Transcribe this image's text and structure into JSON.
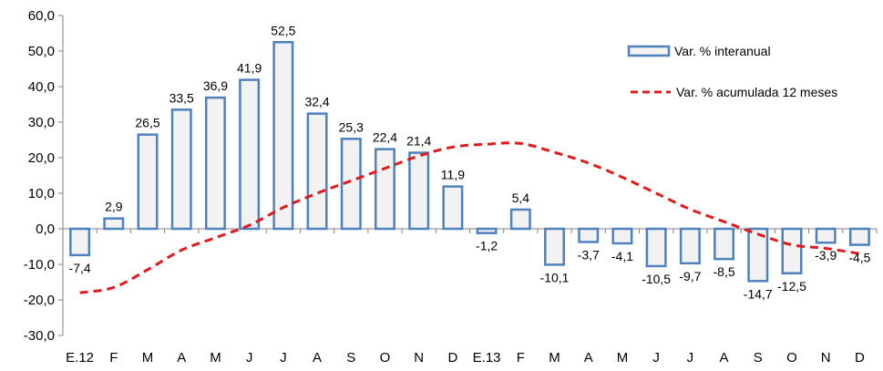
{
  "chart_data": {
    "type": "bar",
    "categories": [
      "E.12",
      "F",
      "M",
      "A",
      "M",
      "J",
      "J",
      "A",
      "S",
      "O",
      "N",
      "D",
      "E.13",
      "F",
      "M",
      "A",
      "M",
      "J",
      "J",
      "A",
      "S",
      "O",
      "N",
      "D"
    ],
    "ylim": [
      -30,
      60
    ],
    "yticks": [
      -30,
      -20,
      -10,
      0,
      10,
      20,
      30,
      40,
      50,
      60
    ],
    "ytick_labels": [
      "-30,0",
      "-20,0",
      "-10,0",
      "0,0",
      "10,0",
      "20,0",
      "30,0",
      "40,0",
      "50,0",
      "60,0"
    ],
    "grid": false,
    "legend_position": "top-right",
    "series": [
      {
        "name": "Var. % interanual",
        "type": "bar",
        "color": "#4f81bd",
        "fill": "#f2f2f2",
        "values": [
          -7.4,
          2.9,
          26.5,
          33.5,
          36.9,
          41.9,
          52.5,
          32.4,
          25.3,
          22.4,
          21.4,
          11.9,
          -1.2,
          5.4,
          -10.1,
          -3.7,
          -4.1,
          -10.5,
          -9.7,
          -8.5,
          -14.7,
          -12.5,
          -3.9,
          -4.5
        ],
        "labels": [
          "-7,4",
          "2,9",
          "26,5",
          "33,5",
          "36,9",
          "41,9",
          "52,5",
          "32,4",
          "25,3",
          "22,4",
          "21,4",
          "11,9",
          "-1,2",
          "5,4",
          "-10,1",
          "-3,7",
          "-4,1",
          "-10,5",
          "-9,7",
          "-8,5",
          "-14,7",
          "-12,5",
          "-3,9",
          "-4,5"
        ]
      },
      {
        "name": "Var. % acumulada 12 meses",
        "type": "line",
        "style": "dashed",
        "color": "#e31a1c",
        "values": [
          -18.0,
          -16.5,
          -11.5,
          -6.0,
          -2.5,
          1.0,
          6.0,
          10.0,
          13.5,
          17.0,
          20.5,
          23.0,
          23.8,
          24.0,
          21.5,
          18.5,
          14.5,
          10.0,
          5.5,
          2.0,
          -1.5,
          -4.5,
          -5.5,
          -7.0
        ]
      }
    ]
  }
}
